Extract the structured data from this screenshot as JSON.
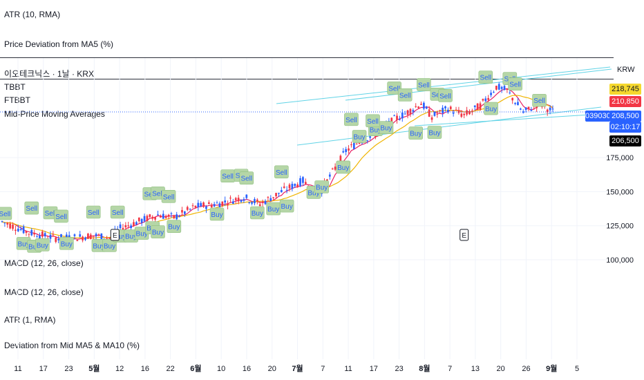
{
  "panes": {
    "top_atr": "ATR (10, RMA)",
    "price_dev": "Price Deviation from MA5 (%)",
    "symbol": "이오테크닉스 · 1날 · KRX",
    "tbbt": "TBBT",
    "ftbbt": "FTBBT",
    "mid_ma": "Mid-Price Moving Averages",
    "macd1": "MACD (12, 26, close)",
    "macd2": "MACD (12, 26, close)",
    "atr1": "ATR (1, RMA)",
    "dev_mid": "Deviation from Mid MA5 & MA10 (%)"
  },
  "currency": "KRW",
  "price_tags": {
    "t1": "218,745",
    "t2": "210,850",
    "symbol_code": "039030",
    "t3": "208,500",
    "timer": "02:10:17",
    "t4": "206,500"
  },
  "colors": {
    "up": "#f23645",
    "down": "#2962ff",
    "ma_fast": "#e91e63",
    "ma_slow": "#f0b400",
    "channel": "#5fd3e6",
    "signal_bg": "#b5d6a7",
    "signal_text": "#2962ff"
  },
  "chart_data": {
    "type": "candlestick",
    "yticks": [
      "175,000",
      "150,000",
      "125,000",
      "100,000"
    ],
    "ytick_values": [
      175000,
      150000,
      125000,
      100000
    ],
    "xticks": [
      "11",
      "17",
      "23",
      "5월",
      "12",
      "16",
      "22",
      "6월",
      "10",
      "16",
      "20",
      "7월",
      "7",
      "11",
      "17",
      "23",
      "8월",
      "7",
      "13",
      "20",
      "26",
      "9월",
      "5"
    ],
    "earnings_markers": [
      {
        "label": "E",
        "date_index": 42
      },
      {
        "label": "E",
        "date_index": 172
      }
    ],
    "ylim": [
      98000,
      245000
    ],
    "grid": true,
    "buy_signals": [
      {
        "label": "Buy",
        "index": 8,
        "price": 112000
      },
      {
        "label": "Buy",
        "index": 12,
        "price": 110000
      },
      {
        "label": "Buy",
        "index": 15,
        "price": 111000
      },
      {
        "label": "Buy",
        "index": 24,
        "price": 112000
      },
      {
        "label": "Buy",
        "index": 36,
        "price": 110500
      },
      {
        "label": "Buy",
        "index": 40,
        "price": 110500
      },
      {
        "label": "Buy",
        "index": 44,
        "price": 117500
      },
      {
        "label": "Buy",
        "index": 48,
        "price": 117500
      },
      {
        "label": "Buy",
        "index": 52,
        "price": 119500
      },
      {
        "label": "Buy",
        "index": 56,
        "price": 123500
      },
      {
        "label": "Buy",
        "index": 58,
        "price": 120500
      },
      {
        "label": "Buy",
        "index": 64,
        "price": 124500
      },
      {
        "label": "Buy",
        "index": 80,
        "price": 133500
      },
      {
        "label": "Buy",
        "index": 95,
        "price": 134500
      },
      {
        "label": "Buy",
        "index": 101,
        "price": 137500
      },
      {
        "label": "Buy",
        "index": 106,
        "price": 139500
      },
      {
        "label": "Buy",
        "index": 116,
        "price": 149500
      },
      {
        "label": "Buy",
        "index": 119,
        "price": 153500
      },
      {
        "label": "Buy",
        "index": 127,
        "price": 168000
      },
      {
        "label": "Buy",
        "index": 133,
        "price": 190500
      },
      {
        "label": "Buy",
        "index": 139,
        "price": 195500
      },
      {
        "label": "Buy",
        "index": 143,
        "price": 197000
      },
      {
        "label": "Buy",
        "index": 154,
        "price": 193000
      },
      {
        "label": "Buy",
        "index": 161,
        "price": 193500
      },
      {
        "label": "Buy",
        "index": 182,
        "price": 211000
      }
    ],
    "sell_signals": [
      {
        "label": "Sell",
        "index": 1,
        "price": 134000
      },
      {
        "label": "Sell",
        "index": 11,
        "price": 138000
      },
      {
        "label": "Sell",
        "index": 18,
        "price": 134500
      },
      {
        "label": "Sell",
        "index": 22,
        "price": 132000
      },
      {
        "label": "Sell",
        "index": 34,
        "price": 135000
      },
      {
        "label": "Sell",
        "index": 43,
        "price": 135000
      },
      {
        "label": "Sell",
        "index": 55,
        "price": 148500
      },
      {
        "label": "Sell",
        "index": 58,
        "price": 149000
      },
      {
        "label": "Sell",
        "index": 62,
        "price": 146500
      },
      {
        "label": "Sell",
        "index": 84,
        "price": 161500
      },
      {
        "label": "Sell",
        "index": 89,
        "price": 162000
      },
      {
        "label": "Sell",
        "index": 91,
        "price": 160000
      },
      {
        "label": "Sell",
        "index": 104,
        "price": 164500
      },
      {
        "label": "Sell",
        "index": 130,
        "price": 203000
      },
      {
        "label": "Sell",
        "index": 138,
        "price": 202000
      },
      {
        "label": "Sell",
        "index": 146,
        "price": 226000
      },
      {
        "label": "Sell",
        "index": 150,
        "price": 221000
      },
      {
        "label": "Sell",
        "index": 157,
        "price": 228500
      },
      {
        "label": "Sell",
        "index": 162,
        "price": 221500
      },
      {
        "label": "Sell",
        "index": 165,
        "price": 220500
      },
      {
        "label": "Sell",
        "index": 180,
        "price": 234000
      },
      {
        "label": "Sell",
        "index": 189,
        "price": 233000
      },
      {
        "label": "Sell",
        "index": 191,
        "price": 229000
      },
      {
        "label": "Sell",
        "index": 200,
        "price": 217000
      }
    ],
    "last_close": 208500,
    "n_bars": 206
  }
}
